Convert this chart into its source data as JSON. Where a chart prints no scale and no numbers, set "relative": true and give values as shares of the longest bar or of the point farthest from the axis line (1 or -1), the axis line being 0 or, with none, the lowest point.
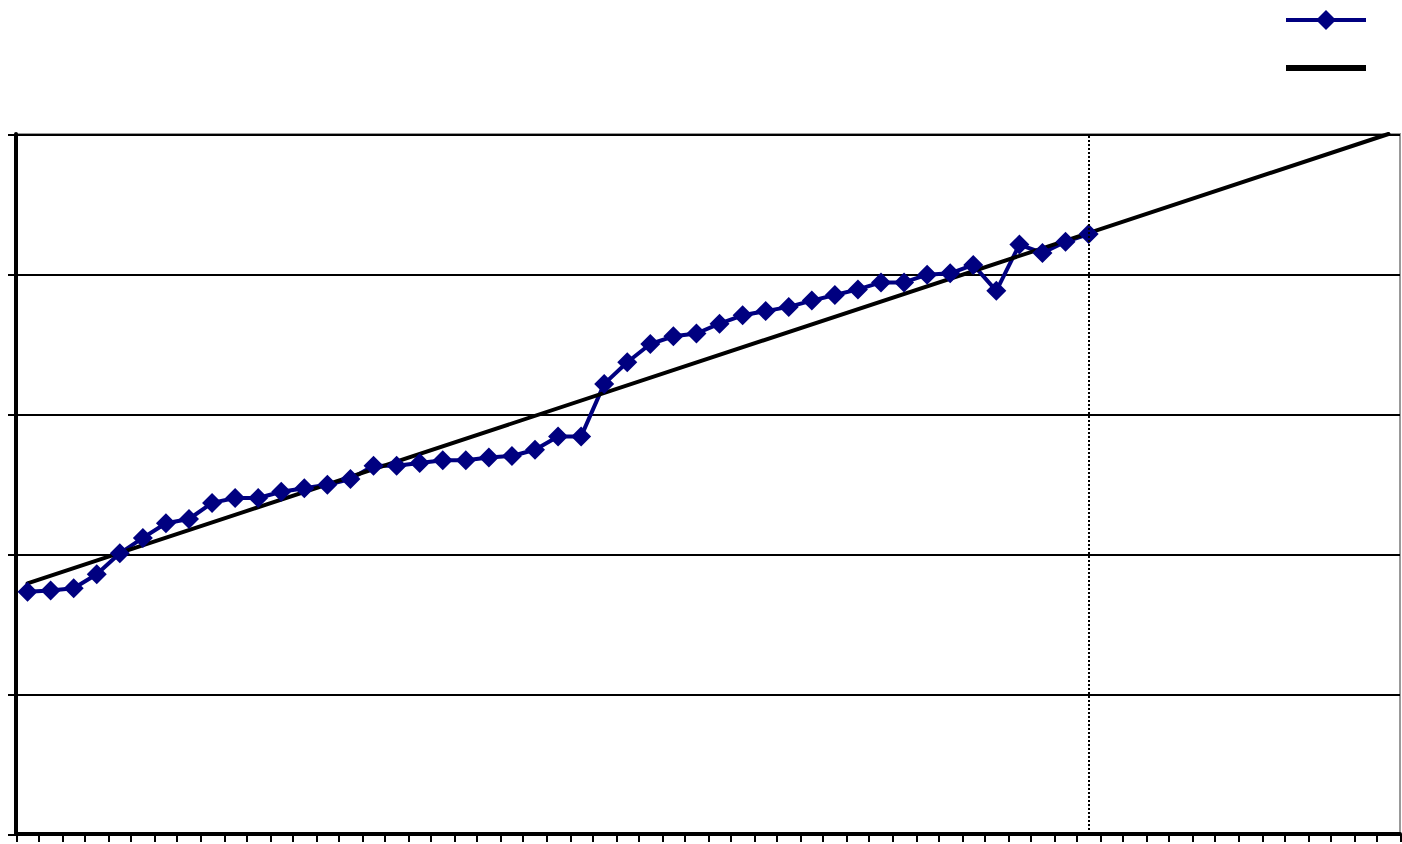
{
  "chart_data": {
    "type": "line",
    "relative": true,
    "grid": "y",
    "marker": "diamond",
    "tick_labels": false,
    "categories": [
      null,
      null,
      null,
      null,
      null,
      null,
      null,
      null,
      null,
      null,
      null,
      null,
      null,
      null,
      null,
      null,
      null,
      null,
      null,
      null,
      null,
      null,
      null,
      null,
      null,
      null,
      null,
      null,
      null,
      null,
      null,
      null,
      null,
      null,
      null,
      null,
      null,
      null,
      null,
      null,
      null,
      null,
      null,
      null,
      null,
      null,
      null,
      null,
      null,
      null,
      null,
      null,
      null,
      null,
      null,
      null,
      null,
      null,
      null,
      null
    ],
    "series": [
      {
        "color": "#000080",
        "values": [
          0.346,
          0.348,
          0.351,
          0.371,
          0.401,
          0.423,
          0.444,
          0.45,
          0.473,
          0.48,
          0.48,
          0.489,
          0.494,
          0.499,
          0.507,
          0.526,
          0.526,
          0.53,
          0.534,
          0.534,
          0.538,
          0.54,
          0.549,
          0.568,
          0.568,
          0.643,
          0.674,
          0.7,
          0.711,
          0.715,
          0.729,
          0.741,
          0.747,
          0.753,
          0.762,
          0.77,
          0.778,
          0.788,
          0.788,
          0.799,
          0.801,
          0.813,
          0.776,
          0.842,
          0.83,
          0.846,
          0.857,
          null,
          null,
          null,
          null,
          null,
          null,
          null,
          null,
          null,
          null,
          null,
          null,
          null
        ]
      },
      {
        "type": "line",
        "color": "#000000",
        "marker": "none",
        "values": [
          0.358,
          null,
          null,
          null,
          null,
          null,
          null,
          null,
          null,
          null,
          null,
          null,
          null,
          null,
          null,
          null,
          null,
          null,
          null,
          null,
          null,
          null,
          null,
          null,
          null,
          null,
          null,
          null,
          null,
          null,
          null,
          null,
          null,
          null,
          null,
          null,
          null,
          null,
          null,
          null,
          null,
          null,
          null,
          null,
          null,
          null,
          null,
          null,
          null,
          null,
          null,
          null,
          null,
          null,
          null,
          null,
          null,
          null,
          null,
          1
        ]
      }
    ],
    "ref_lines": [
      {
        "axis": "x",
        "line_style": "dotted",
        "color": "#000000"
      }
    ]
  }
}
